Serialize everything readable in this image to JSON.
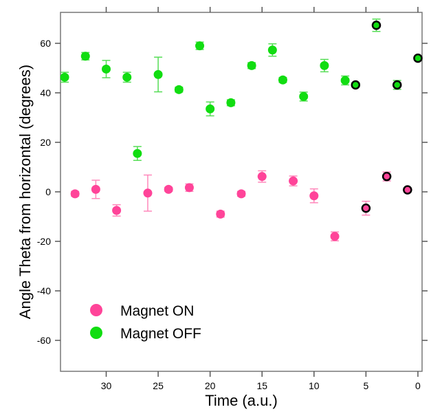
{
  "chart_data": {
    "type": "scatter",
    "title": "",
    "xlabel": "Time (a.u.)",
    "ylabel": "Angle Theta from horizontal (degrees)",
    "xlim": [
      34.4,
      -0.4
    ],
    "ylim": [
      -72.5,
      72.5
    ],
    "x_reversed": true,
    "x_ticks": [
      30,
      25,
      20,
      15,
      10,
      5,
      0
    ],
    "y_ticks": [
      60,
      40,
      20,
      0,
      -20,
      -40,
      -60
    ],
    "grid": false,
    "legend_position": "bottom-left",
    "series": [
      {
        "name": "Magnet ON",
        "color": "#ff4499",
        "errcolor": "#ff88bb",
        "points": [
          {
            "x": 33,
            "y": -0.8,
            "err": 1.0
          },
          {
            "x": 31,
            "y": 1.0,
            "err": 3.7
          },
          {
            "x": 29,
            "y": -7.5,
            "err": 2.3
          },
          {
            "x": 26,
            "y": -0.5,
            "err": 7.3
          },
          {
            "x": 24,
            "y": 1.0,
            "err": 0.8
          },
          {
            "x": 22,
            "y": 1.7,
            "err": 1.5
          },
          {
            "x": 19,
            "y": -9.0,
            "err": 1.2
          },
          {
            "x": 17,
            "y": -0.8,
            "err": 1.0
          },
          {
            "x": 15,
            "y": 6.2,
            "err": 2.3
          },
          {
            "x": 12,
            "y": 4.4,
            "err": 2.0
          },
          {
            "x": 10,
            "y": -1.6,
            "err": 2.8
          },
          {
            "x": 8,
            "y": -18.0,
            "err": 1.8
          },
          {
            "x": 5,
            "y": -6.6,
            "err": 2.8,
            "outlined": true
          },
          {
            "x": 3,
            "y": 6.2,
            "err": 1.8,
            "outlined": true
          },
          {
            "x": 1,
            "y": 0.8,
            "err": 0.8,
            "outlined": true
          }
        ]
      },
      {
        "name": "Magnet OFF",
        "color": "#11dd11",
        "errcolor": "#55dd55",
        "points": [
          {
            "x": 34,
            "y": 46.3,
            "err": 2.0
          },
          {
            "x": 32,
            "y": 54.8,
            "err": 1.5
          },
          {
            "x": 30,
            "y": 49.6,
            "err": 3.5
          },
          {
            "x": 28,
            "y": 46.3,
            "err": 2.0
          },
          {
            "x": 27,
            "y": 15.5,
            "err": 2.8
          },
          {
            "x": 25,
            "y": 47.4,
            "err": 7.0
          },
          {
            "x": 23,
            "y": 41.3,
            "err": 1.0
          },
          {
            "x": 21,
            "y": 59.0,
            "err": 1.5
          },
          {
            "x": 20,
            "y": 33.5,
            "err": 2.8
          },
          {
            "x": 18,
            "y": 36.0,
            "err": 1.2
          },
          {
            "x": 16,
            "y": 51.0,
            "err": 1.2
          },
          {
            "x": 14,
            "y": 57.3,
            "err": 2.5
          },
          {
            "x": 13,
            "y": 45.2,
            "err": 1.0
          },
          {
            "x": 11,
            "y": 38.5,
            "err": 1.8
          },
          {
            "x": 9,
            "y": 51.0,
            "err": 2.5
          },
          {
            "x": 7,
            "y": 45.0,
            "err": 1.8
          },
          {
            "x": 6,
            "y": 43.2,
            "err": 0.8,
            "outlined": true
          },
          {
            "x": 4,
            "y": 67.3,
            "err": 2.5,
            "outlined": true
          },
          {
            "x": 2,
            "y": 43.2,
            "err": 1.8,
            "outlined": true
          },
          {
            "x": 0,
            "y": 54.0,
            "err": 0.8,
            "outlined": true
          }
        ]
      }
    ]
  }
}
